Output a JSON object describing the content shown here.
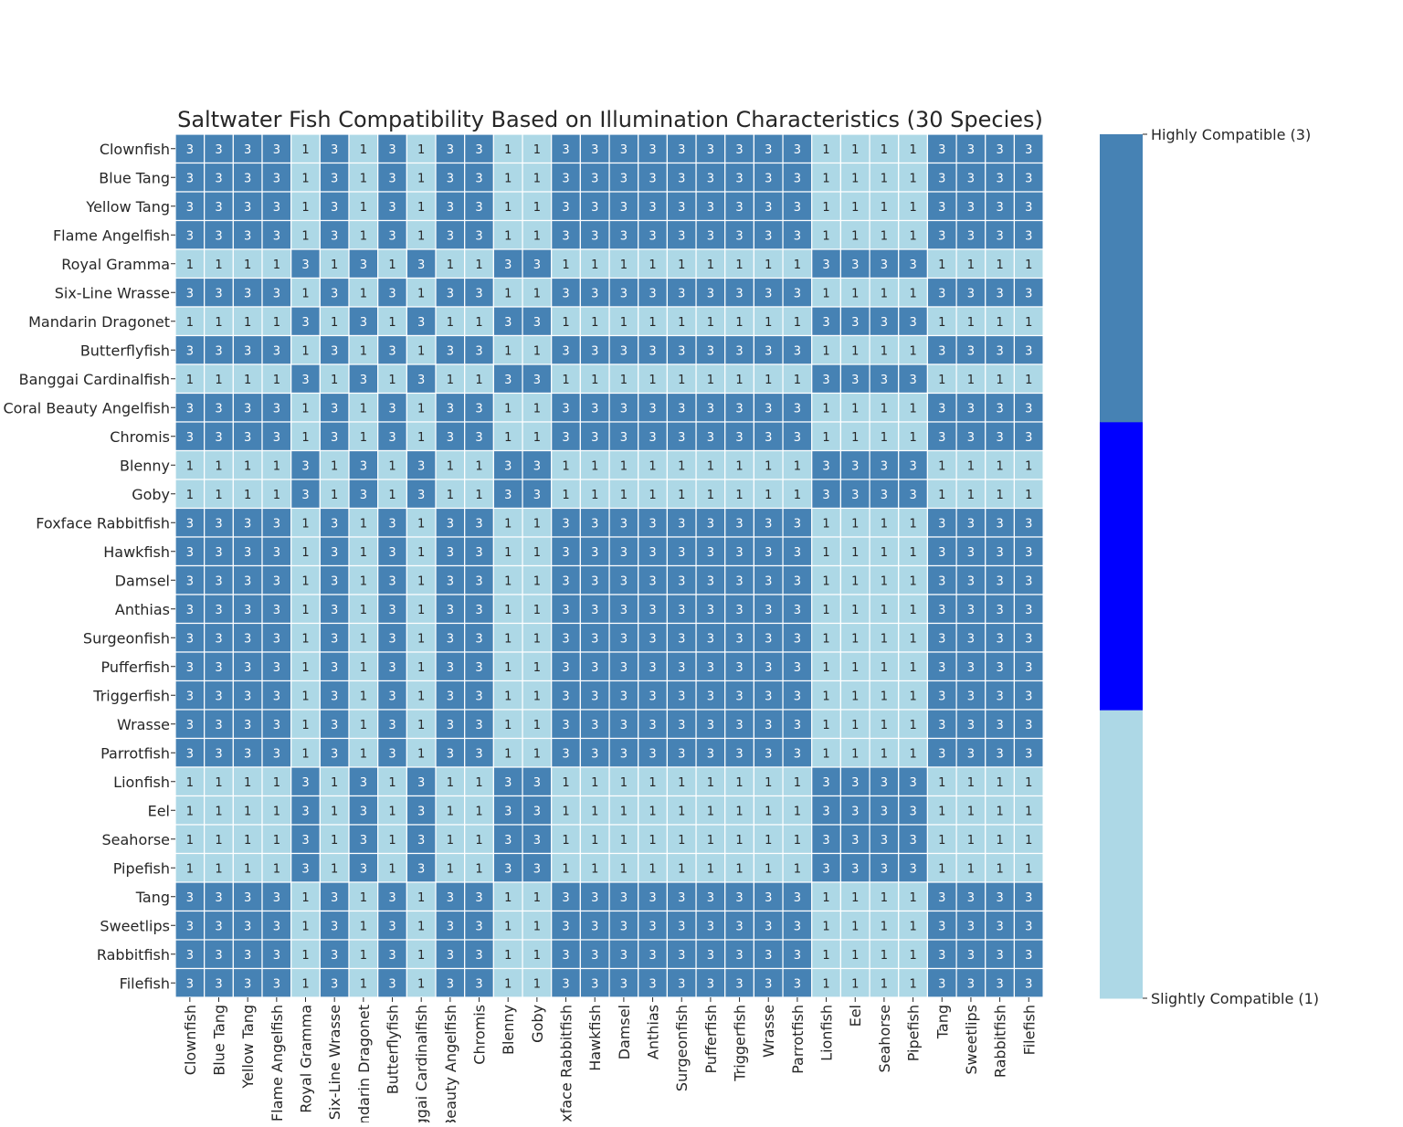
{
  "chart_data": {
    "type": "heatmap",
    "title": "Saltwater Fish Compatibility Based on Illumination Characteristics (30 Species)",
    "species": [
      "Clownfish",
      "Blue Tang",
      "Yellow Tang",
      "Flame Angelfish",
      "Royal Gramma",
      "Six-Line Wrasse",
      "Mandarin Dragonet",
      "Butterflyfish",
      "Banggai Cardinalfish",
      "Coral Beauty Angelfish",
      "Chromis",
      "Blenny",
      "Goby",
      "Foxface Rabbitfish",
      "Hawkfish",
      "Damsel",
      "Anthias",
      "Surgeonfish",
      "Pufferfish",
      "Triggerfish",
      "Wrasse",
      "Parrotfish",
      "Lionfish",
      "Eel",
      "Seahorse",
      "Pipefish",
      "Tang",
      "Sweetlips",
      "Rabbitfish",
      "Filefish"
    ],
    "group_pattern": [
      1,
      1,
      1,
      1,
      0,
      1,
      0,
      1,
      0,
      1,
      1,
      0,
      0,
      1,
      1,
      1,
      1,
      1,
      1,
      1,
      1,
      1,
      0,
      0,
      0,
      0,
      1,
      1,
      1,
      1
    ],
    "rule": "value = 3 when row and column species share the same group, otherwise 1",
    "colorbar": {
      "top_label": "Highly Compatible (3)",
      "bottom_label": "Slightly Compatible (1)",
      "min": 1,
      "max": 3
    },
    "colors": {
      "value_3": "#4682b4",
      "value_2": "#0000ff",
      "value_1": "#add8e6",
      "grid_line": "#ffffff",
      "text_on_3": "#ffffff",
      "text_on_1": "#262626"
    }
  }
}
